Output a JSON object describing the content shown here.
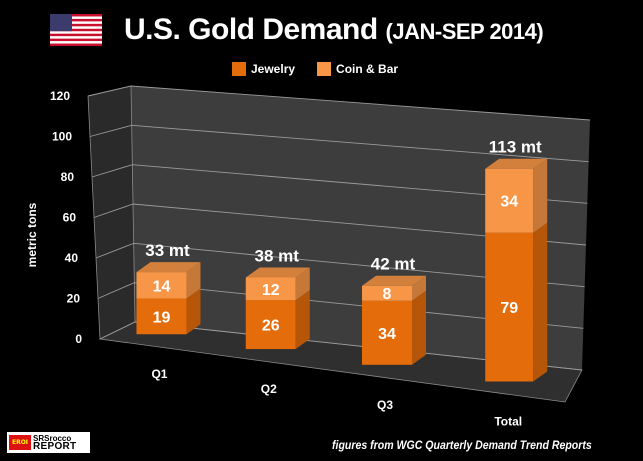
{
  "header": {
    "title_main": "U.S. Gold Demand",
    "title_sub": "(JAN-SEP 2014)",
    "flag": "us-flag-icon"
  },
  "footer": {
    "source": "figures from  WGC Quarterly Demand Trend Reports",
    "logo_badge": "EROI",
    "logo_line1": "SRSrocco",
    "logo_line2": "REPORT"
  },
  "chart_data": {
    "type": "bar",
    "stacked": true,
    "three_d": true,
    "title": "U.S. Gold Demand (JAN-SEP 2014)",
    "xlabel": "",
    "ylabel": "metric tons",
    "ylim": [
      0,
      120
    ],
    "yticks": [
      0,
      20,
      40,
      60,
      80,
      100,
      120
    ],
    "grid": true,
    "legend_position": "top-center",
    "categories": [
      "Q1",
      "Q2",
      "Q3",
      "Total"
    ],
    "series": [
      {
        "name": "Jewelry",
        "color": "#E46C0A",
        "values": [
          19,
          26,
          34,
          79
        ]
      },
      {
        "name": "Coin & Bar",
        "color": "#F79646",
        "values": [
          14,
          12,
          8,
          34
        ]
      }
    ],
    "totals_labels": [
      "33 mt",
      "38 mt",
      "42 mt",
      "113 mt"
    ]
  }
}
